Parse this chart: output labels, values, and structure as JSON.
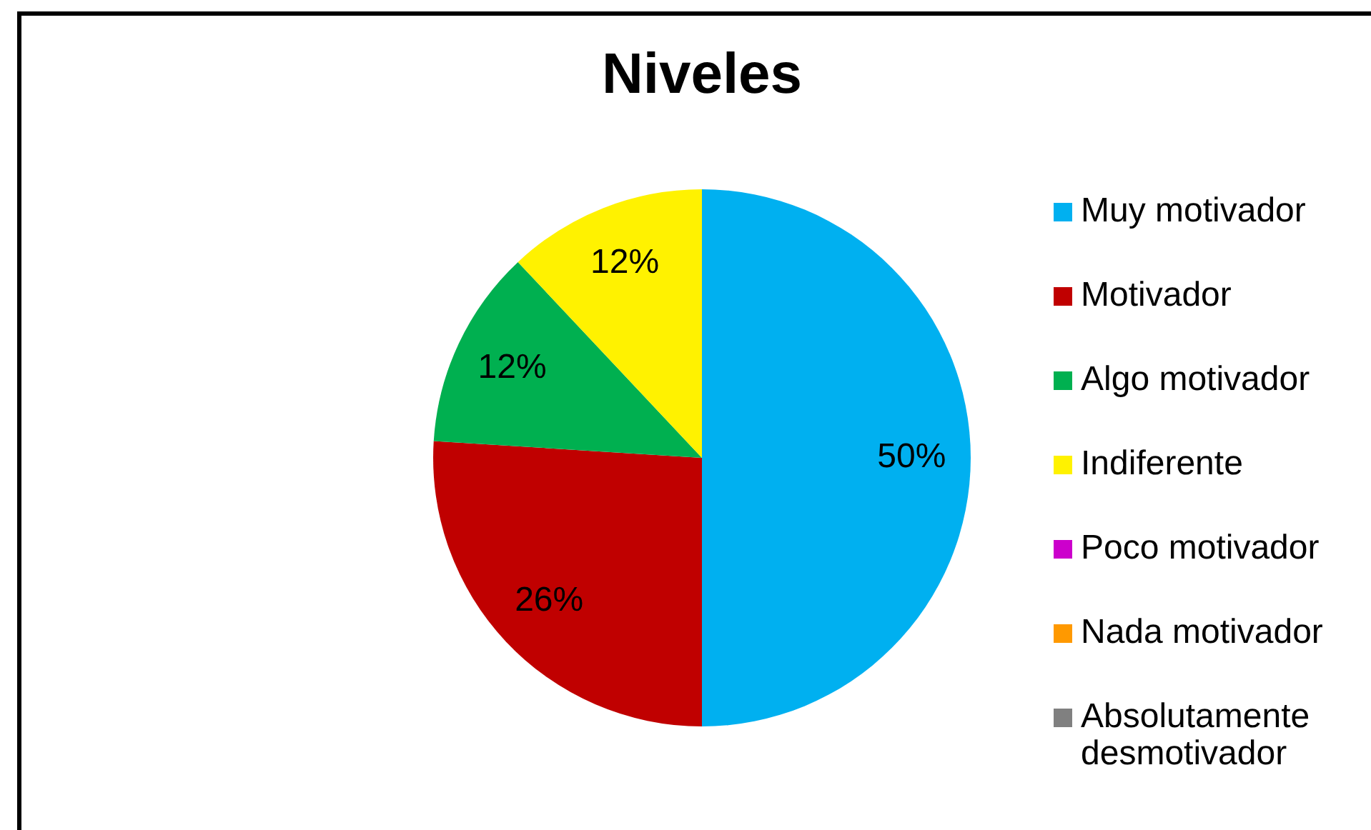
{
  "chart_data": {
    "type": "pie",
    "title": "Niveles",
    "categories": [
      "Muy motivador",
      "Motivador",
      "Algo motivador",
      "Indiferente",
      "Poco motivador",
      "Nada motivador",
      "Absolutamente desmotivador"
    ],
    "values": [
      50,
      26,
      12,
      12,
      0,
      0,
      0
    ],
    "colors": [
      "#00b0f0",
      "#c00000",
      "#00b050",
      "#fff200",
      "#cc00cc",
      "#ff9900",
      "#808080"
    ],
    "value_labels": [
      "50%",
      "26%",
      "12%",
      "12%",
      null,
      null,
      null
    ],
    "legend": "right"
  }
}
